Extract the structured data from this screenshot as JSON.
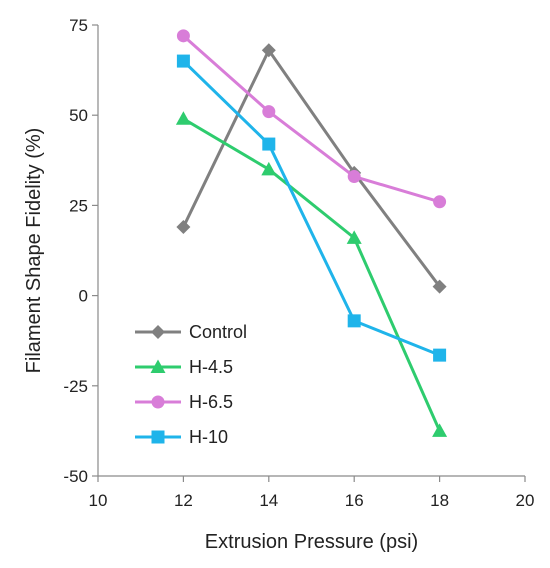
{
  "chart_data": {
    "type": "line",
    "title": "",
    "xlabel": "Extrusion Pressure (psi)",
    "ylabel": "Filament Shape Fidelity (%)",
    "xlim": [
      10,
      20
    ],
    "ylim": [
      -50,
      75
    ],
    "xticks": [
      10,
      12,
      14,
      16,
      18,
      20
    ],
    "yticks": [
      -50,
      -25,
      0,
      25,
      50,
      75
    ],
    "xtick_labels": [
      "10",
      "12",
      "14",
      "16",
      "18",
      "20"
    ],
    "ytick_labels": [
      "-50",
      "-25",
      "0",
      "25",
      "50",
      "75"
    ],
    "grid": false,
    "legend_position": "bottom-left",
    "x": [
      12,
      14,
      16,
      18
    ],
    "series": [
      {
        "name": "Control",
        "values": [
          19,
          68,
          34,
          2.5
        ],
        "color": "#808080",
        "marker": "diamond"
      },
      {
        "name": "H-4.5",
        "values": [
          49,
          35,
          16,
          -37.5
        ],
        "color": "#2ECC6E",
        "marker": "triangle"
      },
      {
        "name": "H-6.5",
        "values": [
          72,
          51,
          33,
          26
        ],
        "color": "#D87DD8",
        "marker": "circle"
      },
      {
        "name": "H-10",
        "values": [
          65,
          42,
          -7,
          -16.5
        ],
        "color": "#1FB4EA",
        "marker": "square"
      }
    ]
  }
}
